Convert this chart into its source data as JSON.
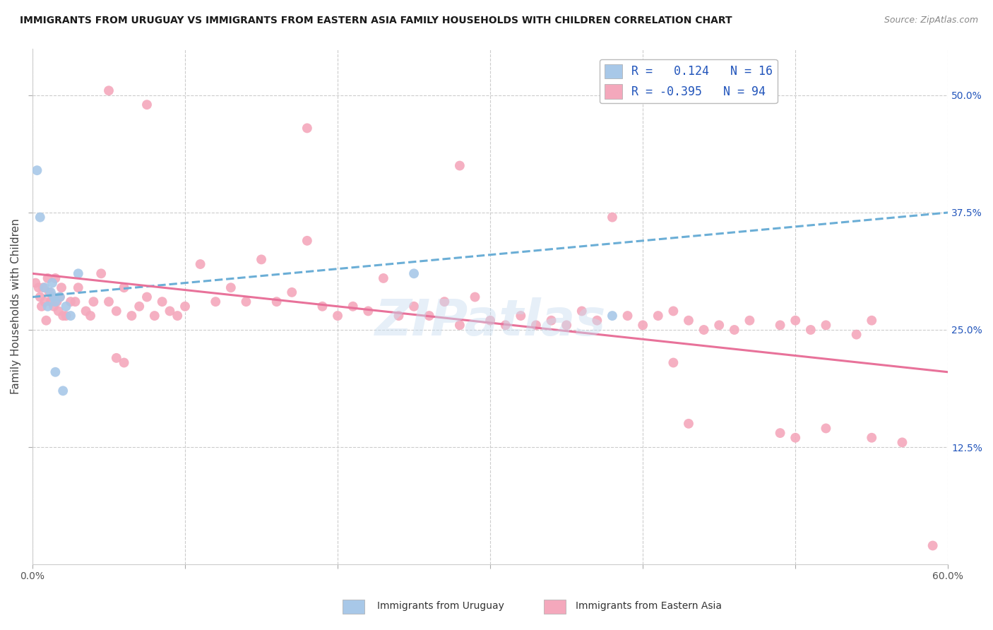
{
  "title": "IMMIGRANTS FROM URUGUAY VS IMMIGRANTS FROM EASTERN ASIA FAMILY HOUSEHOLDS WITH CHILDREN CORRELATION CHART",
  "source": "Source: ZipAtlas.com",
  "ylabel": "Family Households with Children",
  "xmin": 0.0,
  "xmax": 0.6,
  "ymin": 0.0,
  "ymax": 0.55,
  "R_uruguay": 0.124,
  "N_uruguay": 16,
  "R_eastern_asia": -0.395,
  "N_eastern_asia": 94,
  "uruguay_color": "#a8c8e8",
  "eastern_asia_color": "#f4a8bc",
  "uruguay_line_color": "#6baed6",
  "eastern_asia_line_color": "#e8729a",
  "legend_text_color": "#2255bb",
  "background_color": "#ffffff",
  "grid_color": "#cccccc",
  "uru_line_x0": 0.0,
  "uru_line_y0": 0.285,
  "uru_line_x1": 0.6,
  "uru_line_y1": 0.375,
  "ea_line_x0": 0.0,
  "ea_line_y0": 0.31,
  "ea_line_x1": 0.6,
  "ea_line_y1": 0.205,
  "uruguay_x": [
    0.003,
    0.005,
    0.008,
    0.01,
    0.012,
    0.013,
    0.014,
    0.015,
    0.018,
    0.022,
    0.025,
    0.03,
    0.015,
    0.02,
    0.25,
    0.38
  ],
  "uruguay_y": [
    0.42,
    0.37,
    0.295,
    0.275,
    0.29,
    0.3,
    0.285,
    0.28,
    0.285,
    0.275,
    0.265,
    0.31,
    0.205,
    0.185,
    0.31,
    0.265
  ],
  "eastern_asia_x": [
    0.002,
    0.004,
    0.005,
    0.006,
    0.007,
    0.008,
    0.009,
    0.01,
    0.011,
    0.012,
    0.013,
    0.014,
    0.015,
    0.016,
    0.017,
    0.018,
    0.019,
    0.02,
    0.022,
    0.025,
    0.028,
    0.03,
    0.035,
    0.038,
    0.04,
    0.045,
    0.05,
    0.055,
    0.06,
    0.065,
    0.07,
    0.075,
    0.08,
    0.085,
    0.09,
    0.095,
    0.1,
    0.11,
    0.12,
    0.13,
    0.14,
    0.15,
    0.16,
    0.17,
    0.18,
    0.19,
    0.2,
    0.21,
    0.22,
    0.23,
    0.24,
    0.25,
    0.26,
    0.27,
    0.28,
    0.29,
    0.3,
    0.31,
    0.32,
    0.33,
    0.34,
    0.35,
    0.36,
    0.37,
    0.39,
    0.4,
    0.41,
    0.42,
    0.43,
    0.44,
    0.45,
    0.46,
    0.47,
    0.49,
    0.5,
    0.51,
    0.52,
    0.54,
    0.55,
    0.38,
    0.05,
    0.075,
    0.18,
    0.28,
    0.055,
    0.06,
    0.42,
    0.43,
    0.49,
    0.5,
    0.52,
    0.55,
    0.57,
    0.59
  ],
  "eastern_asia_y": [
    0.3,
    0.295,
    0.285,
    0.275,
    0.295,
    0.28,
    0.26,
    0.305,
    0.29,
    0.28,
    0.285,
    0.275,
    0.305,
    0.28,
    0.27,
    0.285,
    0.295,
    0.265,
    0.265,
    0.28,
    0.28,
    0.295,
    0.27,
    0.265,
    0.28,
    0.31,
    0.28,
    0.27,
    0.295,
    0.265,
    0.275,
    0.285,
    0.265,
    0.28,
    0.27,
    0.265,
    0.275,
    0.32,
    0.28,
    0.295,
    0.28,
    0.325,
    0.28,
    0.29,
    0.345,
    0.275,
    0.265,
    0.275,
    0.27,
    0.305,
    0.265,
    0.275,
    0.265,
    0.28,
    0.255,
    0.285,
    0.26,
    0.255,
    0.265,
    0.255,
    0.26,
    0.255,
    0.27,
    0.26,
    0.265,
    0.255,
    0.265,
    0.27,
    0.26,
    0.25,
    0.255,
    0.25,
    0.26,
    0.255,
    0.26,
    0.25,
    0.255,
    0.245,
    0.26,
    0.37,
    0.505,
    0.49,
    0.465,
    0.425,
    0.22,
    0.215,
    0.215,
    0.15,
    0.14,
    0.135,
    0.145,
    0.135,
    0.13,
    0.02
  ]
}
